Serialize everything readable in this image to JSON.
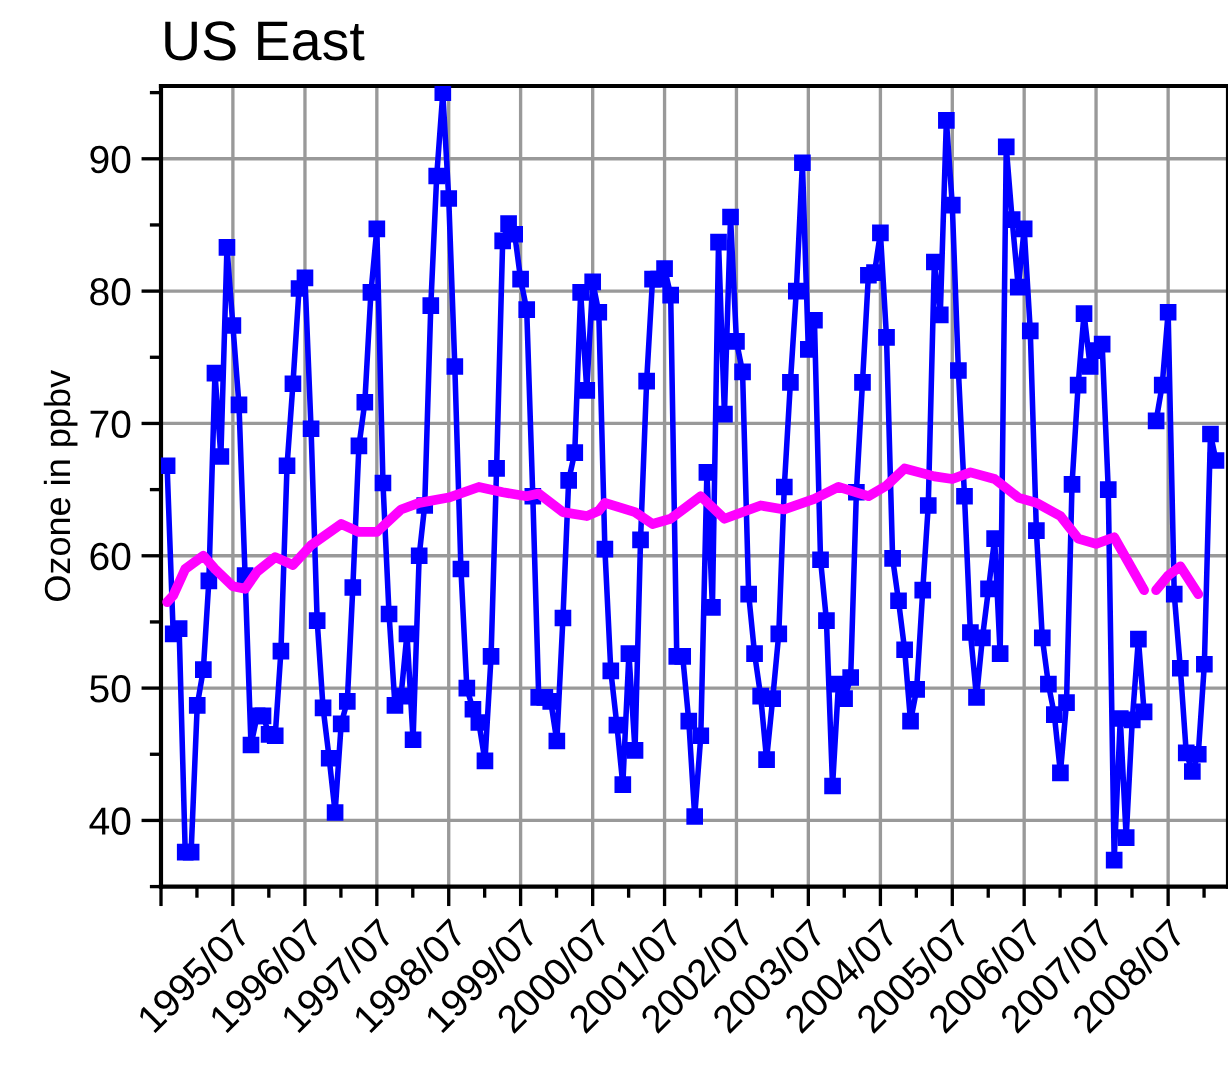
{
  "chart_data": {
    "type": "line",
    "title": "US East",
    "ylabel": "Ozone in ppbv",
    "x": [
      "1994-08",
      "1994-09",
      "1994-10",
      "1994-11",
      "1994-12",
      "1995-01",
      "1995-02",
      "1995-03",
      "1995-04",
      "1995-05",
      "1995-06",
      "1995-07",
      "1995-08",
      "1995-09",
      "1995-10",
      "1995-11",
      "1995-12",
      "1996-01",
      "1996-02",
      "1996-03",
      "1996-04",
      "1996-05",
      "1996-06",
      "1996-07",
      "1996-08",
      "1996-09",
      "1996-10",
      "1996-11",
      "1996-12",
      "1997-01",
      "1997-02",
      "1997-03",
      "1997-04",
      "1997-05",
      "1997-06",
      "1997-07",
      "1997-08",
      "1997-09",
      "1997-10",
      "1997-11",
      "1997-12",
      "1998-01",
      "1998-02",
      "1998-03",
      "1998-04",
      "1998-05",
      "1998-06",
      "1998-07",
      "1998-08",
      "1998-09",
      "1998-10",
      "1998-11",
      "1998-12",
      "1999-01",
      "1999-02",
      "1999-03",
      "1999-04",
      "1999-05",
      "1999-06",
      "1999-07",
      "1999-08",
      "1999-09",
      "1999-10",
      "1999-11",
      "1999-12",
      "2000-01",
      "2000-02",
      "2000-03",
      "2000-04",
      "2000-05",
      "2000-06",
      "2000-07",
      "2000-08",
      "2000-09",
      "2000-10",
      "2000-11",
      "2000-12",
      "2001-01",
      "2001-02",
      "2001-03",
      "2001-04",
      "2001-05",
      "2001-06",
      "2001-07",
      "2001-08",
      "2001-09",
      "2001-10",
      "2001-11",
      "2001-12",
      "2002-01",
      "2002-02",
      "2002-03",
      "2002-04",
      "2002-05",
      "2002-06",
      "2002-07",
      "2002-08",
      "2002-09",
      "2002-10",
      "2002-11",
      "2002-12",
      "2003-01",
      "2003-02",
      "2003-03",
      "2003-04",
      "2003-05",
      "2003-06",
      "2003-07",
      "2003-08",
      "2003-09",
      "2003-10",
      "2003-11",
      "2003-12",
      "2004-01",
      "2004-02",
      "2004-03",
      "2004-04",
      "2004-05",
      "2004-06",
      "2004-07",
      "2004-08",
      "2004-09",
      "2004-10",
      "2004-11",
      "2004-12",
      "2005-01",
      "2005-02",
      "2005-03",
      "2005-04",
      "2005-05",
      "2005-06",
      "2005-07",
      "2005-08",
      "2005-09",
      "2005-10",
      "2005-11",
      "2005-12",
      "2006-01",
      "2006-02",
      "2006-03",
      "2006-04",
      "2006-05",
      "2006-06",
      "2006-07",
      "2006-08",
      "2006-09",
      "2006-10",
      "2006-11",
      "2006-12",
      "2007-01",
      "2007-02",
      "2007-03",
      "2007-04",
      "2007-05",
      "2007-06",
      "2007-07",
      "2007-08",
      "2007-09",
      "2007-10",
      "2007-11",
      "2007-12",
      "2008-01",
      "2008-02",
      "2008-03",
      "2008-04",
      "2008-05",
      "2008-06",
      "2008-07",
      "2008-08",
      "2008-09",
      "2008-10",
      "2008-11",
      "2008-12",
      "2009-01",
      "2009-02",
      "2009-03"
    ],
    "series": [
      {
        "color": "#0000ff",
        "marker": "square",
        "values": [
          66.8,
          54.1,
          54.5,
          37.6,
          37.6,
          48.7,
          51.4,
          58.1,
          73.8,
          67.5,
          83.3,
          77.4,
          71.4,
          58.5,
          45.7,
          47.9,
          47.9,
          46.5,
          46.4,
          52.8,
          66.8,
          73.0,
          80.2,
          81.0,
          69.6,
          55.1,
          48.5,
          44.7,
          40.6,
          47.3,
          49.0,
          57.6,
          68.3,
          71.6,
          79.9,
          84.7,
          65.5,
          55.6,
          48.7,
          49.4,
          54.1,
          46.1,
          60.0,
          63.8,
          78.9,
          88.7,
          95.0,
          87.0,
          74.3,
          59.0,
          50.0,
          48.4,
          47.4,
          44.5,
          52.4,
          66.6,
          83.8,
          85.1,
          84.3,
          80.9,
          78.6,
          64.5,
          49.3,
          49.3,
          49.0,
          46.0,
          55.3,
          65.7,
          67.8,
          79.9,
          72.5,
          80.7,
          78.4,
          60.5,
          51.3,
          47.2,
          42.7,
          52.6,
          45.3,
          61.2,
          73.2,
          80.9,
          80.9,
          81.7,
          79.7,
          52.4,
          52.4,
          47.5,
          40.3,
          46.4,
          66.3,
          56.1,
          83.7,
          70.7,
          85.6,
          76.2,
          73.9,
          57.1,
          52.6,
          49.4,
          44.6,
          49.2,
          54.1,
          65.2,
          73.1,
          80.0,
          89.7,
          75.6,
          77.8,
          59.7,
          55.1,
          42.6,
          50.3,
          49.2,
          50.8,
          64.8,
          73.1,
          81.2,
          81.4,
          84.4,
          76.5,
          59.8,
          56.6,
          52.9,
          47.5,
          49.9,
          57.4,
          63.8,
          82.2,
          78.2,
          92.9,
          86.5,
          74.0,
          64.5,
          54.2,
          49.3,
          53.8,
          57.5,
          61.3,
          52.6,
          90.9,
          85.4,
          80.3,
          84.7,
          77.0,
          61.9,
          53.8,
          50.3,
          48.0,
          43.6,
          48.9,
          65.4,
          72.9,
          78.3,
          74.3,
          75.5,
          76.0,
          65.0,
          37.0,
          47.7,
          38.7,
          47.6,
          53.7,
          48.2,
          null,
          70.2,
          72.9,
          78.4,
          57.1,
          51.5,
          45.1,
          43.7,
          45.0,
          51.8,
          69.2,
          67.2
        ]
      },
      {
        "color": "#ff00ff",
        "marker": "none",
        "x": [
          "1994-08",
          "1994-09",
          "1994-11",
          "1995-02",
          "1995-04",
          "1995-07",
          "1995-09",
          "1995-11",
          "1996-02",
          "1996-05",
          "1996-08",
          "1997-01",
          "1997-04",
          "1997-07",
          "1997-11",
          "1998-02",
          "1998-07",
          "1998-12",
          "1999-04",
          "1999-08",
          "1999-10",
          "2000-02",
          "2000-06",
          "2000-08",
          "2000-09",
          "2001-02",
          "2001-05",
          "2001-08",
          "2002-01",
          "2002-05",
          "2002-11",
          "2003-03",
          "2003-08",
          "2003-12",
          "2004-05",
          "2004-08",
          "2004-11",
          "2005-04",
          "2005-07",
          "2005-10",
          "2006-02",
          "2006-06",
          "2006-09",
          "2007-01",
          "2007-04",
          "2007-07",
          "2007-10",
          "2008-03",
          "2008-04",
          "2008-05",
          "2008-07",
          "2008-09",
          "2008-12"
        ],
        "values": [
          56.5,
          57.0,
          59.0,
          60.0,
          59.0,
          57.7,
          57.5,
          58.8,
          59.9,
          59.3,
          60.8,
          62.4,
          61.8,
          61.8,
          63.5,
          64.0,
          64.4,
          65.2,
          64.8,
          64.5,
          64.7,
          63.3,
          63.0,
          63.4,
          64.0,
          63.3,
          62.4,
          62.8,
          64.5,
          62.8,
          63.8,
          63.5,
          64.3,
          65.2,
          64.5,
          65.3,
          66.6,
          66.0,
          65.8,
          66.3,
          65.8,
          64.4,
          64.0,
          63.0,
          61.3,
          60.9,
          61.4,
          57.4,
          null,
          57.4,
          58.5,
          59.2,
          57.1
        ]
      }
    ],
    "xlim": [
      "1994-07",
      "2009-05"
    ],
    "xticks": [
      {
        "value": "1994-07",
        "label": null
      },
      {
        "value": "1995-07",
        "label": "1995/07"
      },
      {
        "value": "1996-07",
        "label": "1996/07"
      },
      {
        "value": "1997-07",
        "label": "1997/07"
      },
      {
        "value": "1998-07",
        "label": "1998/07"
      },
      {
        "value": "1999-07",
        "label": "1999/07"
      },
      {
        "value": "2000-07",
        "label": "2000/07"
      },
      {
        "value": "2001-07",
        "label": "2001/07"
      },
      {
        "value": "2002-07",
        "label": "2002/07"
      },
      {
        "value": "2003-07",
        "label": "2003/07"
      },
      {
        "value": "2004-07",
        "label": "2004/07"
      },
      {
        "value": "2005-07",
        "label": "2005/07"
      },
      {
        "value": "2006-07",
        "label": "2006/07"
      },
      {
        "value": "2007-07",
        "label": "2007/07"
      },
      {
        "value": "2008-07",
        "label": "2008/07"
      }
    ],
    "ylim": [
      35,
      95.5
    ],
    "yticks": [
      40,
      50,
      60,
      70,
      80,
      90
    ],
    "grid": true
  }
}
